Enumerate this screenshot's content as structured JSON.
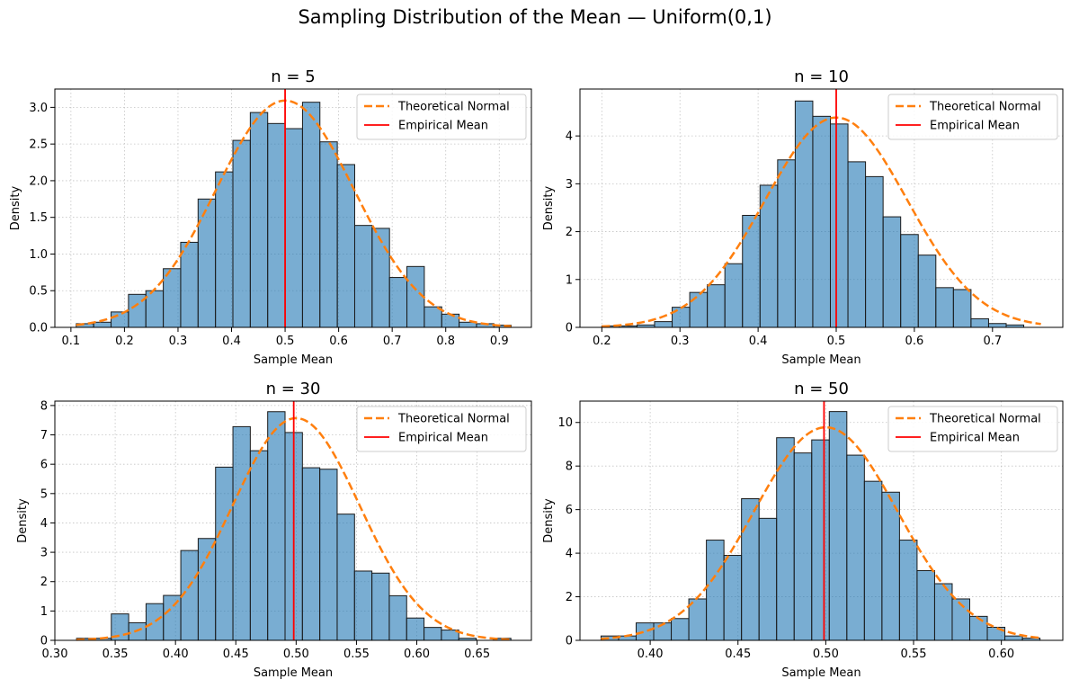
{
  "figure": {
    "title": "Sampling Distribution of the Mean — Uniform(0,1)"
  },
  "chart_data": [
    {
      "type": "bar",
      "title": "n = 5",
      "xlabel": "Sample Mean",
      "ylabel": "Density",
      "xlim": [
        0.07,
        0.96
      ],
      "ylim": [
        0,
        3.25
      ],
      "xticks": [
        0.1,
        0.2,
        0.3,
        0.4,
        0.5,
        0.6,
        0.7,
        0.8,
        0.9
      ],
      "xtick_labels": [
        "0.1",
        "0.2",
        "0.3",
        "0.4",
        "0.5",
        "0.6",
        "0.7",
        "0.8",
        "0.9"
      ],
      "yticks": [
        0.0,
        0.5,
        1.0,
        1.5,
        2.0,
        2.5,
        3.0
      ],
      "ytick_labels": [
        "0.0",
        "0.5",
        "1.0",
        "1.5",
        "2.0",
        "2.5",
        "3.0"
      ],
      "grid": true,
      "legend_position": "top-right",
      "bin_edges": [
        0.11,
        0.1425,
        0.175,
        0.2075,
        0.24,
        0.2725,
        0.305,
        0.3375,
        0.37,
        0.4025,
        0.435,
        0.4675,
        0.5,
        0.5325,
        0.565,
        0.5975,
        0.63,
        0.6625,
        0.695,
        0.7275,
        0.76,
        0.7925,
        0.825,
        0.8575,
        0.89,
        0.922
      ],
      "density": [
        0.05,
        0.07,
        0.21,
        0.45,
        0.5,
        0.8,
        1.16,
        1.75,
        2.12,
        2.55,
        2.93,
        2.78,
        2.71,
        3.07,
        2.53,
        2.22,
        1.39,
        1.35,
        0.68,
        0.83,
        0.28,
        0.18,
        0.07,
        0.05,
        0.03
      ],
      "normal": {
        "mean": 0.5,
        "sd": 0.129
      },
      "empirical_mean": 0.5,
      "series": [
        {
          "name": "Theoretical Normal",
          "kind": "dashed-line",
          "color": "#ff7f0e"
        },
        {
          "name": "Empirical Mean",
          "kind": "vertical-line",
          "color": "#ff0000"
        }
      ],
      "bar_color": "#1f77b4"
    },
    {
      "type": "bar",
      "title": "n = 10",
      "xlabel": "Sample Mean",
      "ylabel": "Density",
      "xlim": [
        0.172,
        0.79
      ],
      "ylim": [
        0,
        4.98
      ],
      "xticks": [
        0.2,
        0.3,
        0.4,
        0.5,
        0.6,
        0.7
      ],
      "xtick_labels": [
        "0.2",
        "0.3",
        "0.4",
        "0.5",
        "0.6",
        "0.7"
      ],
      "yticks": [
        0,
        1,
        2,
        3,
        4
      ],
      "ytick_labels": [
        "0",
        "1",
        "2",
        "3",
        "4"
      ],
      "grid": true,
      "legend_position": "top-right",
      "bin_edges": [
        0.2,
        0.2225,
        0.245,
        0.2675,
        0.29,
        0.3125,
        0.335,
        0.3575,
        0.38,
        0.4025,
        0.425,
        0.4475,
        0.47,
        0.4925,
        0.515,
        0.5375,
        0.56,
        0.5825,
        0.605,
        0.6275,
        0.65,
        0.6725,
        0.695,
        0.7175,
        0.74,
        0.762
      ],
      "density": [
        0.03,
        0.03,
        0.05,
        0.12,
        0.42,
        0.73,
        0.89,
        1.33,
        2.34,
        2.97,
        3.5,
        4.73,
        4.41,
        4.25,
        3.46,
        3.15,
        2.31,
        1.94,
        1.51,
        0.83,
        0.79,
        0.18,
        0.08,
        0.05,
        0.0
      ],
      "normal": {
        "mean": 0.5,
        "sd": 0.091
      },
      "empirical_mean": 0.5,
      "series": [
        {
          "name": "Theoretical Normal",
          "kind": "dashed-line",
          "color": "#ff7f0e"
        },
        {
          "name": "Empirical Mean",
          "kind": "vertical-line",
          "color": "#ff0000"
        }
      ],
      "bar_color": "#1f77b4"
    },
    {
      "type": "bar",
      "title": "n = 30",
      "xlabel": "Sample Mean",
      "ylabel": "Density",
      "xlim": [
        0.3,
        0.695
      ],
      "ylim": [
        0,
        8.15
      ],
      "xticks": [
        0.3,
        0.35,
        0.4,
        0.45,
        0.5,
        0.55,
        0.6,
        0.65
      ],
      "xtick_labels": [
        "0.30",
        "0.35",
        "0.40",
        "0.45",
        "0.50",
        "0.55",
        "0.60",
        "0.65"
      ],
      "yticks": [
        0,
        1,
        2,
        3,
        4,
        5,
        6,
        7,
        8
      ],
      "ytick_labels": [
        "0",
        "1",
        "2",
        "3",
        "4",
        "5",
        "6",
        "7",
        "8"
      ],
      "grid": true,
      "legend_position": "top-right",
      "bin_edges": [
        0.318,
        0.3324,
        0.3468,
        0.3612,
        0.3756,
        0.39,
        0.4044,
        0.4188,
        0.4332,
        0.4476,
        0.462,
        0.4764,
        0.4908,
        0.5052,
        0.5196,
        0.534,
        0.5484,
        0.5628,
        0.5772,
        0.5916,
        0.606,
        0.6204,
        0.6348,
        0.6492,
        0.6636,
        0.678
      ],
      "density": [
        0.07,
        0.07,
        0.9,
        0.6,
        1.25,
        1.53,
        3.06,
        3.47,
        5.9,
        7.28,
        6.46,
        7.79,
        7.08,
        5.88,
        5.83,
        4.3,
        2.36,
        2.29,
        1.52,
        0.76,
        0.44,
        0.35,
        0.07,
        0.0,
        0.07
      ],
      "normal": {
        "mean": 0.5,
        "sd": 0.0527
      },
      "empirical_mean": 0.498,
      "series": [
        {
          "name": "Theoretical Normal",
          "kind": "dashed-line",
          "color": "#ff7f0e"
        },
        {
          "name": "Empirical Mean",
          "kind": "vertical-line",
          "color": "#ff0000"
        }
      ],
      "bar_color": "#1f77b4"
    },
    {
      "type": "bar",
      "title": "n = 50",
      "xlabel": "Sample Mean",
      "ylabel": "Density",
      "xlim": [
        0.36,
        0.635
      ],
      "ylim": [
        0,
        10.98
      ],
      "xticks": [
        0.4,
        0.45,
        0.5,
        0.55,
        0.6
      ],
      "xtick_labels": [
        "0.40",
        "0.45",
        "0.50",
        "0.55",
        "0.60"
      ],
      "yticks": [
        0,
        2,
        4,
        6,
        8,
        10
      ],
      "ytick_labels": [
        "0",
        "2",
        "4",
        "6",
        "8",
        "10"
      ],
      "grid": true,
      "legend_position": "top-right",
      "bin_edges": [
        0.372,
        0.382,
        0.392,
        0.402,
        0.412,
        0.422,
        0.432,
        0.442,
        0.452,
        0.462,
        0.472,
        0.482,
        0.492,
        0.502,
        0.512,
        0.522,
        0.532,
        0.542,
        0.552,
        0.562,
        0.572,
        0.582,
        0.592,
        0.602,
        0.612,
        0.622
      ],
      "density": [
        0.2,
        0.2,
        0.8,
        0.8,
        1.0,
        1.9,
        4.6,
        3.9,
        6.5,
        5.6,
        9.3,
        8.6,
        9.2,
        10.5,
        8.5,
        7.3,
        6.8,
        4.6,
        3.2,
        2.6,
        1.9,
        1.1,
        0.6,
        0.2,
        0.1
      ],
      "normal": {
        "mean": 0.5,
        "sd": 0.0408
      },
      "empirical_mean": 0.499,
      "series": [
        {
          "name": "Theoretical Normal",
          "kind": "dashed-line",
          "color": "#ff7f0e"
        },
        {
          "name": "Empirical Mean",
          "kind": "vertical-line",
          "color": "#ff0000"
        }
      ],
      "bar_color": "#1f77b4"
    }
  ]
}
